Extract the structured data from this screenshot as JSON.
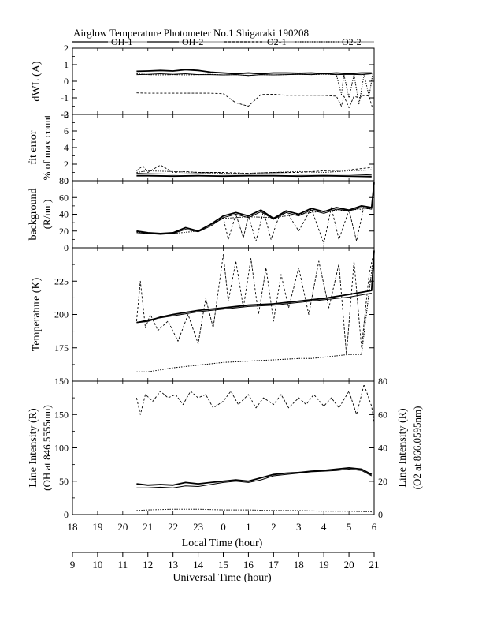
{
  "title": "Airglow Temperature Photometer No.1  Shigaraki  190208",
  "legend": [
    {
      "name": "OH-1",
      "dash": ""
    },
    {
      "name": "OH-2",
      "dash": ""
    },
    {
      "name": "O2-1",
      "dash": "3,2"
    },
    {
      "name": "O2-2",
      "dash": "1.5,1.5"
    }
  ],
  "x_axes": {
    "local": {
      "label": "Local Time (hour)",
      "ticks": [
        "18",
        "19",
        "20",
        "21",
        "22",
        "23",
        "0",
        "1",
        "2",
        "3",
        "4",
        "5",
        "6"
      ]
    },
    "universal": {
      "label": "Universal Time (hour)",
      "ticks": [
        "9",
        "10",
        "11",
        "12",
        "13",
        "14",
        "15",
        "16",
        "17",
        "18",
        "19",
        "20",
        "21"
      ]
    }
  },
  "chart_data": [
    {
      "type": "line",
      "panel": "dwl",
      "ylabel": "dWL (A)",
      "ylim": [
        -2,
        2
      ],
      "yticks": [
        "-2",
        "-1",
        "0",
        "1",
        "2"
      ],
      "x_unit": "universal time (hour)",
      "series": [
        {
          "name": "OH-1",
          "x": [
            11.55,
            12,
            12.5,
            13,
            13.5,
            14,
            14.5,
            15,
            15.5,
            16,
            16.5,
            17,
            17.5,
            18,
            18.5,
            19,
            19.5,
            20,
            20.5,
            20.9
          ],
          "y": [
            0.6,
            0.62,
            0.65,
            0.62,
            0.7,
            0.65,
            0.55,
            0.5,
            0.45,
            0.5,
            0.45,
            0.5,
            0.5,
            0.48,
            0.5,
            0.45,
            0.5,
            0.45,
            0.5,
            0.5
          ]
        },
        {
          "name": "OH-2",
          "x": [
            11.55,
            12,
            12.5,
            13,
            13.5,
            14,
            14.5,
            15,
            15.5,
            16,
            16.5,
            17,
            17.5,
            18,
            18.5,
            19,
            19.5,
            20,
            20.5,
            20.9
          ],
          "y": [
            0.4,
            0.42,
            0.45,
            0.42,
            0.45,
            0.4,
            0.4,
            0.38,
            0.4,
            0.35,
            0.4,
            0.38,
            0.4,
            0.42,
            0.4,
            0.45,
            0.4,
            0.42,
            0.4,
            0.45
          ]
        },
        {
          "name": "O2-1",
          "x": [
            11.55,
            12,
            12.5,
            13,
            13.5,
            14,
            14.5,
            15,
            15.5,
            16,
            16.5,
            17,
            17.5,
            18,
            18.5,
            19,
            19.5,
            19.7,
            19.8,
            20,
            20.2,
            20.4,
            20.6,
            20.8,
            20.95
          ],
          "y": [
            -0.7,
            -0.72,
            -0.72,
            -0.72,
            -0.72,
            -0.72,
            -0.72,
            -0.75,
            -1.3,
            -1.5,
            -0.8,
            -0.78,
            -0.85,
            -0.85,
            -0.85,
            -0.85,
            -0.9,
            -1.5,
            -0.9,
            -1.6,
            -0.9,
            -1.0,
            -0.85,
            -0.9,
            -1.7
          ]
        },
        {
          "name": "O2-2",
          "x": [
            11.55,
            12,
            12.5,
            13,
            13.5,
            14,
            14.5,
            15,
            15.5,
            16,
            16.5,
            17,
            17.5,
            18,
            18.5,
            19,
            19.5,
            19.7,
            19.8,
            20,
            20.2,
            20.4,
            20.6,
            20.8,
            20.95
          ],
          "y": [
            0.45,
            0.4,
            0.38,
            0.4,
            0.38,
            0.4,
            0.42,
            0.38,
            0.4,
            0.35,
            0.4,
            0.38,
            0.4,
            0.42,
            0.4,
            0.42,
            0.4,
            -0.8,
            0.4,
            -1.0,
            0.4,
            -1.4,
            0.4,
            -0.9,
            0.5
          ]
        }
      ]
    },
    {
      "type": "line",
      "panel": "fit-error",
      "ylabel": "fit error",
      "ylabel2": "% of max count",
      "ylim": [
        0,
        8
      ],
      "yticks": [
        "0",
        "2",
        "4",
        "6",
        "8"
      ],
      "x_unit": "universal time (hour)",
      "series": [
        {
          "name": "OH-1",
          "x": [
            11.55,
            12,
            13,
            14,
            15,
            16,
            17,
            18,
            19,
            20,
            20.9
          ],
          "y": [
            0.6,
            0.6,
            0.55,
            0.6,
            0.55,
            0.6,
            0.6,
            0.55,
            0.6,
            0.55,
            0.5
          ]
        },
        {
          "name": "OH-2",
          "x": [
            11.55,
            12,
            13,
            14,
            15,
            16,
            17,
            18,
            19,
            20,
            20.9
          ],
          "y": [
            0.9,
            0.85,
            0.8,
            0.85,
            0.8,
            0.8,
            0.85,
            0.8,
            0.8,
            0.8,
            0.7
          ]
        },
        {
          "name": "O2-1",
          "x": [
            11.55,
            11.8,
            12,
            12.5,
            13,
            13.5,
            14,
            15,
            16,
            17,
            18,
            19,
            20,
            20.9
          ],
          "y": [
            1.2,
            1.8,
            1.0,
            1.9,
            1.0,
            1.1,
            1.0,
            1.0,
            0.9,
            1.0,
            1.0,
            1.2,
            1.3,
            1.6
          ]
        },
        {
          "name": "O2-2",
          "x": [
            11.55,
            12,
            13,
            14,
            15,
            16,
            17,
            18,
            19,
            20,
            20.9
          ],
          "y": [
            1.0,
            1.2,
            1.1,
            1.0,
            0.9,
            0.9,
            1.0,
            1.1,
            1.0,
            1.2,
            1.3
          ]
        }
      ]
    },
    {
      "type": "line",
      "panel": "background",
      "ylabel": "background",
      "ylabel2": "(R/nm)",
      "ylim": [
        0,
        80
      ],
      "yticks": [
        "0",
        "20",
        "40",
        "60",
        "80"
      ],
      "x_unit": "universal time (hour)",
      "series": [
        {
          "name": "OH-1",
          "x": [
            11.55,
            12,
            12.5,
            13,
            13.5,
            14,
            14.5,
            15,
            15.5,
            16,
            16.5,
            17,
            17.5,
            18,
            18.5,
            19,
            19.5,
            20,
            20.5,
            20.9,
            21
          ],
          "y": [
            20,
            18,
            17,
            18,
            24,
            20,
            28,
            38,
            42,
            38,
            45,
            35,
            44,
            40,
            47,
            43,
            48,
            45,
            50,
            48,
            78
          ]
        },
        {
          "name": "OH-2",
          "x": [
            11.55,
            12,
            12.5,
            13,
            13.5,
            14,
            14.5,
            15,
            15.5,
            16,
            16.5,
            17,
            17.5,
            18,
            18.5,
            19,
            19.5,
            20,
            20.5,
            20.9,
            21
          ],
          "y": [
            18,
            17,
            16,
            17,
            22,
            19,
            26,
            36,
            40,
            36,
            43,
            34,
            42,
            38,
            45,
            41,
            46,
            44,
            48,
            46,
            72
          ]
        },
        {
          "name": "O2-1",
          "x": [
            11.55,
            12,
            12.5,
            13,
            13.5,
            14,
            14.5,
            15,
            15.2,
            15.5,
            15.8,
            16,
            16.3,
            16.6,
            16.9,
            17.2,
            17.5,
            18,
            18.5,
            19,
            19.3,
            19.6,
            20,
            20.3,
            20.6,
            20.9
          ],
          "y": [
            20,
            18,
            17,
            18,
            24,
            20,
            28,
            36,
            10,
            40,
            12,
            38,
            8,
            44,
            10,
            36,
            44,
            20,
            47,
            5,
            48,
            10,
            45,
            8,
            50,
            48
          ]
        },
        {
          "name": "O2-2",
          "x": [
            11.55,
            12,
            13,
            14,
            15,
            16,
            17,
            18,
            19,
            20,
            20.9
          ],
          "y": [
            19,
            17,
            17,
            20,
            35,
            37,
            36,
            40,
            44,
            45,
            47
          ]
        }
      ]
    },
    {
      "type": "line",
      "panel": "temperature",
      "ylabel": "Temperature (K)",
      "ylim": [
        150,
        250
      ],
      "yticks": [
        "150",
        "175",
        "200",
        "225"
      ],
      "x_unit": "universal time (hour)",
      "series": [
        {
          "name": "OH-1",
          "x": [
            11.55,
            12,
            12.5,
            13,
            14,
            15,
            16,
            17,
            18,
            19,
            20,
            20.9,
            21
          ],
          "y": [
            194,
            195,
            198,
            200,
            203,
            205,
            207,
            208,
            210,
            212,
            215,
            218,
            248
          ]
        },
        {
          "name": "OH-2",
          "x": [
            11.55,
            12,
            13,
            14,
            15,
            16,
            17,
            18,
            19,
            20,
            20.9
          ],
          "y": [
            194,
            196,
            199,
            202,
            204,
            206,
            207,
            209,
            211,
            213,
            216
          ]
        },
        {
          "name": "O2-1",
          "x": [
            11.55,
            11.7,
            11.9,
            12.1,
            12.4,
            12.8,
            13.2,
            13.6,
            14,
            14.3,
            14.6,
            15,
            15.2,
            15.5,
            15.8,
            16.1,
            16.4,
            16.7,
            17,
            17.3,
            17.6,
            18,
            18.4,
            18.8,
            19.2,
            19.6,
            19.9,
            20.2,
            20.5,
            20.8,
            21
          ],
          "y": [
            195,
            225,
            190,
            200,
            188,
            195,
            180,
            200,
            178,
            212,
            190,
            245,
            210,
            240,
            205,
            242,
            200,
            235,
            195,
            230,
            205,
            235,
            200,
            240,
            205,
            238,
            170,
            240,
            175,
            230,
            248
          ]
        },
        {
          "name": "O2-2",
          "x": [
            11.55,
            12,
            13,
            14,
            15,
            16,
            17,
            18,
            18.5,
            19,
            20,
            20.5,
            21
          ],
          "y": [
            157,
            157,
            160,
            162,
            164,
            165,
            166,
            167,
            167,
            168,
            170,
            170,
            248
          ]
        }
      ]
    },
    {
      "type": "line",
      "panel": "line-intensity",
      "ylabel": "Line Intensity (R)",
      "ylabel2": "(OH at 846.5555nm)",
      "ylabel_right": "Line Intensity (R)",
      "ylabel_right2": "(O2 at 866.0595nm)",
      "ylim": [
        0,
        200
      ],
      "yticks": [
        "0",
        "50",
        "100",
        "150"
      ],
      "ylim_right": [
        0,
        80
      ],
      "yticks_right": [
        "0",
        "20",
        "40",
        "60",
        "80"
      ],
      "x_unit": "universal time (hour)",
      "series": [
        {
          "name": "OH-1",
          "axis": "left",
          "x": [
            11.55,
            12,
            12.5,
            13,
            13.5,
            14,
            14.5,
            15,
            15.5,
            16,
            16.5,
            17,
            17.5,
            18,
            18.5,
            19,
            19.5,
            20,
            20.5,
            20.9
          ],
          "y": [
            46,
            44,
            45,
            44,
            48,
            46,
            48,
            50,
            52,
            50,
            55,
            60,
            62,
            63,
            65,
            66,
            68,
            70,
            68,
            60
          ]
        },
        {
          "name": "OH-2",
          "axis": "left",
          "x": [
            11.55,
            12,
            12.5,
            13,
            13.5,
            14,
            14.5,
            15,
            15.5,
            16,
            16.5,
            17,
            17.5,
            18,
            18.5,
            19,
            19.5,
            20,
            20.5,
            20.9
          ],
          "y": [
            40,
            40,
            41,
            40,
            43,
            42,
            45,
            48,
            50,
            48,
            52,
            58,
            60,
            62,
            64,
            65,
            66,
            68,
            66,
            58
          ]
        },
        {
          "name": "O2-1",
          "axis": "right",
          "x": [
            11.55,
            11.7,
            11.9,
            12.2,
            12.5,
            12.8,
            13.1,
            13.4,
            13.7,
            14,
            14.3,
            14.6,
            15,
            15.3,
            15.6,
            16,
            16.3,
            16.6,
            17,
            17.3,
            17.6,
            18,
            18.3,
            18.6,
            19,
            19.3,
            19.6,
            20,
            20.3,
            20.6,
            20.9,
            21
          ],
          "y": [
            70,
            60,
            72,
            68,
            74,
            70,
            72,
            66,
            74,
            70,
            72,
            64,
            68,
            74,
            66,
            72,
            64,
            70,
            66,
            72,
            64,
            70,
            66,
            72,
            65,
            70,
            64,
            74,
            60,
            78,
            65,
            55
          ]
        },
        {
          "name": "O2-2",
          "axis": "left",
          "x": [
            11.55,
            12,
            13,
            14,
            15,
            16,
            17,
            18,
            19,
            20,
            20.9
          ],
          "y": [
            6,
            7,
            8,
            8,
            7,
            7,
            6,
            6,
            5,
            5,
            4
          ]
        }
      ]
    }
  ]
}
